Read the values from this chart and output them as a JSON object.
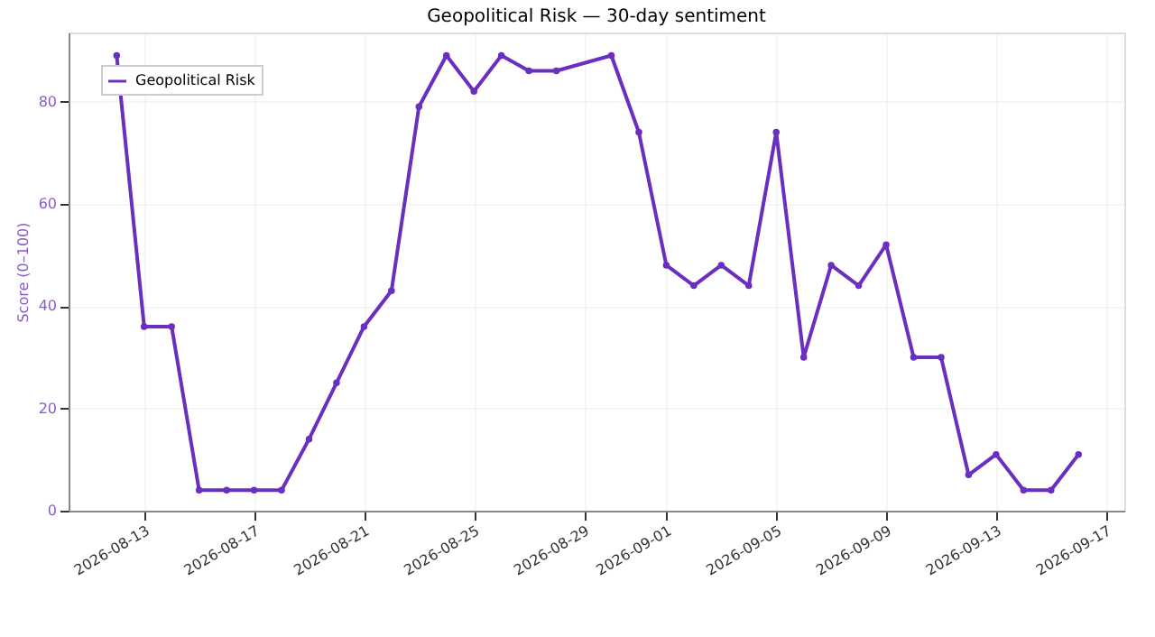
{
  "chart_data": {
    "type": "line",
    "title": "Geopolitical Risk — 30-day sentiment",
    "ylabel": "Score (0–100)",
    "x": [
      "2026-08-12",
      "2026-08-13",
      "2026-08-14",
      "2026-08-15",
      "2026-08-16",
      "2026-08-17",
      "2026-08-18",
      "2026-08-19",
      "2026-08-20",
      "2026-08-21",
      "2026-08-22",
      "2026-08-23",
      "2026-08-24",
      "2026-08-25",
      "2026-08-26",
      "2026-08-27",
      "2026-08-28",
      "2026-08-30",
      "2026-08-31",
      "2026-09-01",
      "2026-09-02",
      "2026-09-03",
      "2026-09-04",
      "2026-09-05",
      "2026-09-06",
      "2026-09-07",
      "2026-09-08",
      "2026-09-09",
      "2026-09-10",
      "2026-09-11",
      "2026-09-12",
      "2026-09-13",
      "2026-09-14",
      "2026-09-15",
      "2026-09-16"
    ],
    "series": [
      {
        "name": "Geopolitical Risk",
        "color": "#6a2fbf",
        "values": [
          89,
          36,
          36,
          4,
          4,
          4,
          4,
          14,
          25,
          36,
          43,
          79,
          89,
          82,
          89,
          86,
          86,
          89,
          74,
          48,
          44,
          48,
          44,
          74,
          30,
          48,
          44,
          52,
          30,
          30,
          7,
          11,
          4,
          4,
          11
        ]
      }
    ],
    "xlim": [
      "2026-08-10T06:00",
      "2026-09-17T16:00"
    ],
    "xticks": [
      "2026-08-13",
      "2026-08-17",
      "2026-08-21",
      "2026-08-25",
      "2026-08-29",
      "2026-09-01",
      "2026-09-05",
      "2026-09-09",
      "2026-09-13",
      "2026-09-17"
    ],
    "ylim": [
      0,
      93.5
    ],
    "yticks": [
      0,
      20,
      40,
      60,
      80
    ],
    "grid": true,
    "legend": "top left",
    "marker": "circle",
    "line_style": "solid"
  }
}
